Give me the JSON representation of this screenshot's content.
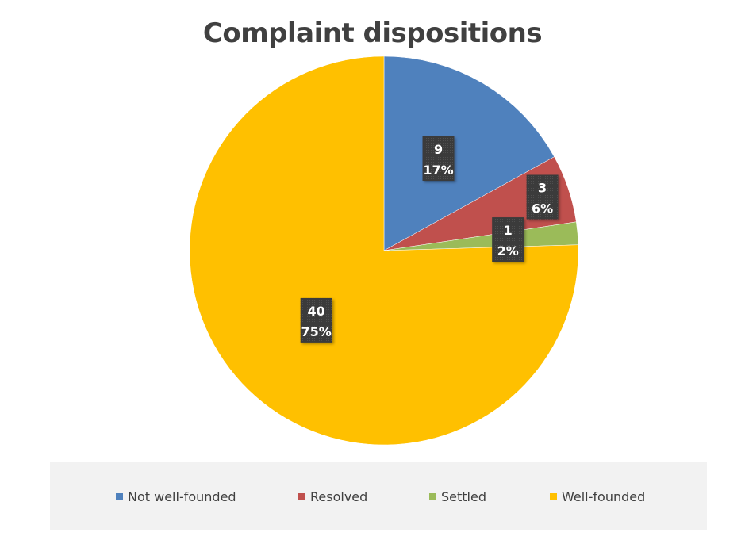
{
  "chart_data": {
    "type": "pie",
    "title": "Complaint dispositions",
    "categories": [
      "Not well-founded",
      "Resolved",
      "Settled",
      "Well-founded"
    ],
    "values": [
      9,
      3,
      1,
      40
    ],
    "percent_labels": [
      "17%",
      "6%",
      "2%",
      "75%"
    ],
    "value_labels": [
      "9",
      "3",
      "1",
      "40"
    ],
    "colors": [
      "#4f81bd",
      "#c0504d",
      "#9bbb59",
      "#ffc000"
    ],
    "legend_position": "bottom",
    "start_angle": "12 o'clock, clockwise"
  }
}
